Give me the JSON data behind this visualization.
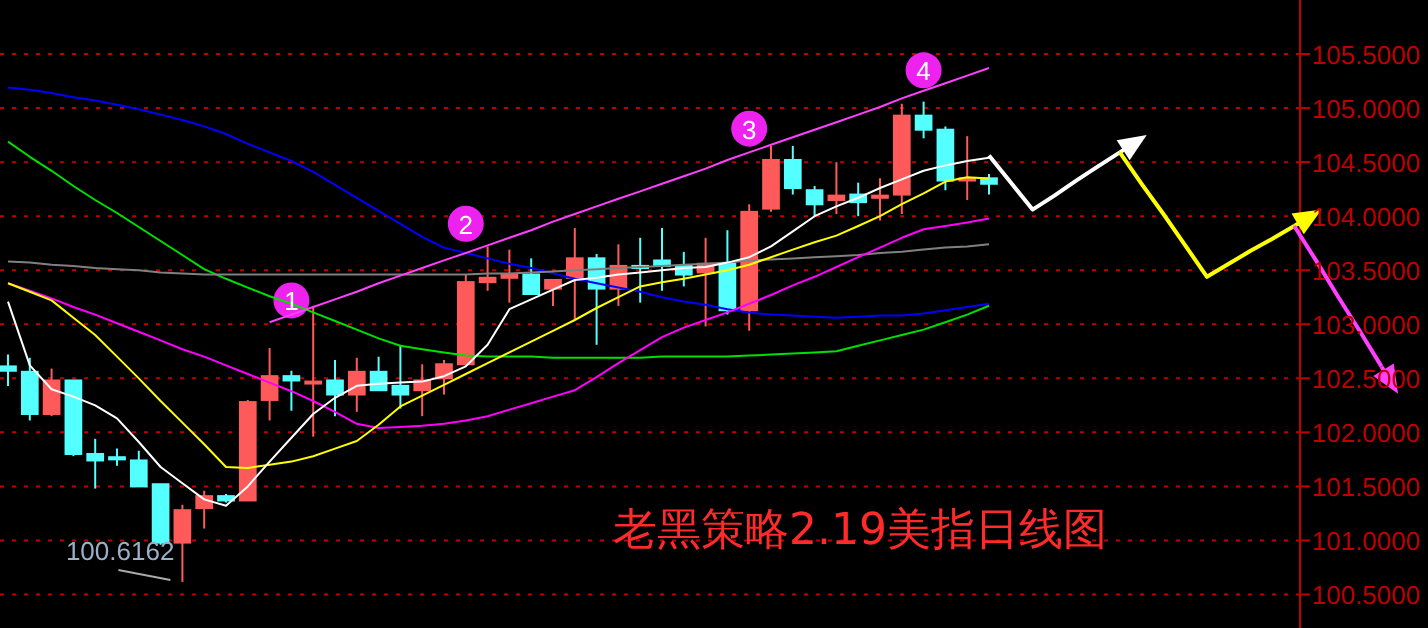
{
  "chart_data": {
    "type": "candlestick",
    "title": "老黑策略2.19美指日线图",
    "categories": [
      null,
      null,
      null,
      null,
      null,
      null,
      null,
      null,
      null,
      null,
      null,
      null,
      null,
      null,
      null,
      null,
      null,
      null,
      null,
      null,
      null,
      null,
      null,
      null,
      null,
      null,
      null,
      null,
      null,
      null,
      null,
      null,
      null,
      null,
      null,
      null,
      null,
      null,
      null,
      null,
      null,
      null,
      null,
      null,
      null,
      null,
      null,
      null,
      null,
      null,
      null,
      null,
      null,
      null,
      null,
      null,
      null,
      null,
      null,
      null,
      null,
      null,
      null,
      null
    ],
    "ohlc": [
      [
        102.61,
        102.72,
        102.43,
        102.57
      ],
      [
        102.56,
        102.69,
        102.11,
        102.17
      ],
      [
        102.17,
        102.59,
        102.15,
        102.48
      ],
      [
        102.48,
        102.48,
        101.78,
        101.8
      ],
      [
        101.8,
        101.94,
        101.48,
        101.74
      ],
      [
        101.77,
        101.85,
        101.69,
        101.75
      ],
      [
        101.74,
        101.83,
        101.5,
        101.5
      ],
      [
        101.52,
        101.52,
        100.96,
        100.98
      ],
      [
        100.98,
        101.33,
        100.6162,
        101.28
      ],
      [
        101.3,
        101.46,
        101.11,
        101.41
      ],
      [
        101.41,
        101.43,
        101.35,
        101.37
      ],
      [
        101.37,
        102.3,
        101.37,
        102.28
      ],
      [
        102.3,
        102.78,
        102.11,
        102.52
      ],
      [
        102.52,
        102.57,
        102.2,
        102.48
      ],
      [
        102.46,
        103.17,
        101.96,
        102.47
      ],
      [
        102.48,
        102.67,
        102.15,
        102.35
      ],
      [
        102.35,
        102.69,
        102.19,
        102.56
      ],
      [
        102.56,
        102.7,
        102.39,
        102.39
      ],
      [
        102.43,
        102.81,
        102.22,
        102.35
      ],
      [
        102.39,
        102.63,
        102.15,
        102.48
      ],
      [
        102.5,
        102.67,
        102.35,
        102.63
      ],
      [
        102.63,
        103.46,
        102.61,
        103.39
      ],
      [
        103.39,
        103.72,
        103.31,
        103.43
      ],
      [
        103.43,
        103.69,
        103.2,
        103.46
      ],
      [
        103.46,
        103.61,
        103.28,
        103.28
      ],
      [
        103.33,
        103.41,
        103.17,
        103.41
      ],
      [
        103.43,
        103.89,
        103.04,
        103.61
      ],
      [
        103.61,
        103.65,
        102.81,
        103.33
      ],
      [
        103.33,
        103.74,
        103.17,
        103.54
      ],
      [
        103.54,
        103.8,
        103.2,
        103.52
      ],
      [
        103.59,
        103.89,
        103.31,
        103.54
      ],
      [
        103.54,
        103.67,
        103.35,
        103.46
      ],
      [
        103.48,
        103.8,
        102.98,
        103.56
      ],
      [
        103.56,
        103.87,
        103.09,
        103.13
      ],
      [
        103.13,
        104.11,
        102.94,
        104.04
      ],
      [
        104.07,
        104.65,
        104.04,
        104.52
      ],
      [
        104.52,
        104.65,
        104.2,
        104.26
      ],
      [
        104.24,
        104.28,
        104.0,
        104.11
      ],
      [
        104.15,
        104.5,
        104.02,
        104.19
      ],
      [
        104.2,
        104.31,
        104.0,
        104.13
      ],
      [
        104.17,
        104.35,
        103.96,
        104.19
      ],
      [
        104.2,
        105.04,
        104.02,
        104.93
      ],
      [
        104.93,
        105.06,
        104.72,
        104.8
      ],
      [
        104.8,
        104.83,
        104.24,
        104.33
      ],
      [
        104.33,
        104.74,
        104.15,
        104.35
      ],
      [
        104.35,
        104.39,
        104.2,
        104.3
      ],
      null,
      null,
      null,
      null,
      null,
      null,
      null,
      null,
      null,
      null,
      null,
      null,
      null,
      null,
      null,
      null,
      null,
      null
    ],
    "colors": [
      "#54ffff",
      "#54ffff",
      "#ff5a5a",
      "#54ffff",
      "#54ffff",
      "#54ffff",
      "#54ffff",
      "#54ffff",
      "#ff5a5a",
      "#ff5a5a",
      "#54ffff",
      "#ff5a5a",
      "#ff5a5a",
      "#54ffff",
      "#ff5a5a",
      "#54ffff",
      "#ff5a5a",
      "#54ffff",
      "#54ffff",
      "#ff5a5a",
      "#ff5a5a",
      "#ff5a5a",
      "#ff5a5a",
      "#ff5a5a",
      "#54ffff",
      "#ff5a5a",
      "#ff5a5a",
      "#54ffff",
      "#ff5a5a",
      "#54ffff",
      "#54ffff",
      "#54ffff",
      "#ff5a5a",
      "#54ffff",
      "#ff5a5a",
      "#ff5a5a",
      "#54ffff",
      "#54ffff",
      "#ff5a5a",
      "#54ffff",
      "#ff5a5a",
      "#ff5a5a",
      "#54ffff",
      "#54ffff",
      "#ff5a5a",
      "#54ffff",
      null,
      null,
      null,
      null,
      null,
      null,
      null,
      null,
      null,
      null,
      null,
      null,
      null,
      null,
      null,
      null,
      null,
      null
    ],
    "series": [
      {
        "type": "line",
        "color": "#0000ff",
        "values": [
          105.19,
          105.17,
          105.14,
          105.1,
          105.07,
          105.03,
          104.99,
          104.94,
          104.89,
          104.83,
          104.76,
          104.67,
          104.59,
          104.51,
          104.41,
          104.29,
          104.17,
          104.05,
          103.93,
          103.81,
          103.71,
          103.66,
          103.61,
          103.56,
          103.52,
          103.47,
          103.42,
          103.38,
          103.34,
          103.3,
          103.25,
          103.21,
          103.18,
          103.14,
          103.11,
          103.09,
          103.08,
          103.07,
          103.06,
          103.07,
          103.08,
          103.08,
          103.1,
          103.13,
          103.16,
          103.19,
          null,
          null,
          null,
          null,
          null,
          null,
          null,
          null,
          null,
          null,
          null,
          null,
          null,
          null,
          null,
          null,
          null,
          null
        ]
      },
      {
        "type": "line",
        "color": "#00e000",
        "values": [
          104.69,
          104.55,
          104.42,
          104.28,
          104.15,
          104.03,
          103.9,
          103.77,
          103.64,
          103.51,
          103.42,
          103.34,
          103.26,
          103.19,
          103.11,
          103.03,
          102.95,
          102.87,
          102.8,
          102.77,
          102.74,
          102.71,
          102.7,
          102.7,
          102.7,
          102.69,
          102.69,
          102.69,
          102.69,
          102.69,
          102.7,
          102.7,
          102.7,
          102.7,
          102.71,
          102.72,
          102.73,
          102.74,
          102.75,
          102.8,
          102.85,
          102.9,
          102.95,
          103.02,
          103.09,
          103.17,
          null,
          null,
          null,
          null,
          null,
          null,
          null,
          null,
          null,
          null,
          null,
          null,
          null,
          null,
          null,
          null,
          null,
          null
        ]
      },
      {
        "type": "line",
        "color": "#808080",
        "values": [
          103.58,
          103.57,
          103.55,
          103.54,
          103.52,
          103.51,
          103.5,
          103.48,
          103.47,
          103.46,
          103.46,
          103.46,
          103.46,
          103.46,
          103.46,
          103.46,
          103.46,
          103.46,
          103.46,
          103.46,
          103.46,
          103.46,
          103.47,
          103.47,
          103.48,
          103.49,
          103.5,
          103.51,
          103.52,
          103.53,
          103.54,
          103.55,
          103.56,
          103.57,
          103.59,
          103.6,
          103.61,
          103.62,
          103.63,
          103.64,
          103.66,
          103.67,
          103.69,
          103.71,
          103.72,
          103.74,
          null,
          null,
          null,
          null,
          null,
          null,
          null,
          null,
          null,
          null,
          null,
          null,
          null,
          null,
          null,
          null,
          null,
          null
        ]
      },
      {
        "type": "line",
        "color": "#ff00ff",
        "values": [
          103.38,
          103.31,
          103.24,
          103.16,
          103.09,
          103.01,
          102.93,
          102.85,
          102.77,
          102.7,
          102.62,
          102.54,
          102.46,
          102.38,
          102.29,
          102.19,
          102.08,
          102.04,
          102.05,
          102.06,
          102.08,
          102.11,
          102.15,
          102.21,
          102.27,
          102.33,
          102.39,
          102.51,
          102.64,
          102.76,
          102.88,
          102.97,
          103.04,
          103.11,
          103.19,
          103.27,
          103.36,
          103.44,
          103.53,
          103.62,
          103.71,
          103.8,
          103.88,
          103.91,
          103.94,
          103.98,
          null,
          null,
          null,
          null,
          null,
          null,
          null,
          null,
          null,
          null,
          null,
          null,
          null,
          null,
          null,
          null,
          null,
          null
        ]
      },
      {
        "type": "line",
        "color": "#ffff00",
        "values": [
          103.38,
          103.3,
          103.22,
          103.06,
          102.9,
          102.7,
          102.5,
          102.29,
          102.09,
          101.89,
          101.68,
          101.67,
          101.7,
          101.73,
          101.78,
          101.85,
          101.92,
          102.07,
          102.24,
          102.34,
          102.44,
          102.54,
          102.64,
          102.74,
          102.84,
          102.94,
          103.04,
          103.15,
          103.25,
          103.35,
          103.39,
          103.42,
          103.46,
          103.5,
          103.55,
          103.62,
          103.69,
          103.76,
          103.82,
          103.91,
          104.0,
          104.11,
          104.21,
          104.32,
          104.36,
          104.35,
          null,
          null,
          null,
          null,
          null,
          null,
          null,
          null,
          null,
          null,
          null,
          null,
          null,
          null,
          null,
          null,
          null,
          null
        ]
      },
      {
        "type": "line",
        "color": "#ffffff",
        "values": [
          103.21,
          102.62,
          102.4,
          102.33,
          102.25,
          102.13,
          101.91,
          101.68,
          101.53,
          101.38,
          101.32,
          101.5,
          101.73,
          101.95,
          102.17,
          102.32,
          102.43,
          102.45,
          102.46,
          102.47,
          102.52,
          102.61,
          102.81,
          103.14,
          103.23,
          103.32,
          103.41,
          103.43,
          103.46,
          103.48,
          103.5,
          103.52,
          103.53,
          103.57,
          103.62,
          103.72,
          103.86,
          104.0,
          104.09,
          104.17,
          104.26,
          104.34,
          104.42,
          104.47,
          104.51,
          104.54,
          null,
          null,
          null,
          null,
          null,
          null,
          null,
          null,
          null,
          null,
          null,
          null,
          null,
          null,
          null,
          null,
          null,
          null
        ]
      },
      {
        "type": "line",
        "color": "#ff40ff",
        "values": [
          null,
          null,
          null,
          null,
          null,
          null,
          null,
          null,
          null,
          null,
          null,
          null,
          103.02,
          103.09,
          103.16,
          103.23,
          103.3,
          103.38,
          103.45,
          103.52,
          103.59,
          103.66,
          103.73,
          103.8,
          103.87,
          103.95,
          104.02,
          104.09,
          104.16,
          104.23,
          104.3,
          104.37,
          104.44,
          104.52,
          104.59,
          104.66,
          104.73,
          104.8,
          104.87,
          104.94,
          105.01,
          105.09,
          105.16,
          105.23,
          105.3,
          105.37,
          null,
          null,
          null,
          null,
          null,
          null,
          null,
          null,
          null,
          null,
          null,
          null,
          null,
          null,
          null,
          null,
          null,
          null
        ]
      },
      {
        "type": "line",
        "color": "#ffffff",
        "values": [
          null,
          null,
          null,
          null,
          null,
          null,
          null,
          null,
          null,
          null,
          null,
          null,
          null,
          null,
          null,
          null,
          null,
          null,
          null,
          null,
          null,
          null,
          null,
          null,
          null,
          null,
          null,
          null,
          null,
          null,
          null,
          null,
          null,
          null,
          null,
          null,
          null,
          null,
          null,
          null,
          null,
          null,
          null,
          null,
          null,
          104.56,
          104.31,
          104.06,
          104.19,
          104.33,
          104.46,
          104.59,
          null,
          null,
          null,
          null,
          null,
          null,
          null,
          null,
          null,
          null,
          null,
          null
        ]
      },
      {
        "type": "line",
        "color": "#ffff00",
        "values": [
          null,
          null,
          null,
          null,
          null,
          null,
          null,
          null,
          null,
          null,
          null,
          null,
          null,
          null,
          null,
          null,
          null,
          null,
          null,
          null,
          null,
          null,
          null,
          null,
          null,
          null,
          null,
          null,
          null,
          null,
          null,
          null,
          null,
          null,
          null,
          null,
          null,
          null,
          null,
          null,
          null,
          null,
          null,
          null,
          null,
          null,
          null,
          null,
          null,
          null,
          null,
          104.59,
          104.3,
          104.02,
          103.73,
          103.44,
          103.56,
          103.68,
          103.79,
          103.91,
          null,
          null,
          null,
          null
        ]
      },
      {
        "type": "line",
        "color": "#ff40ff",
        "values": [
          null,
          null,
          null,
          null,
          null,
          null,
          null,
          null,
          null,
          null,
          null,
          null,
          null,
          null,
          null,
          null,
          null,
          null,
          null,
          null,
          null,
          null,
          null,
          null,
          null,
          null,
          null,
          null,
          null,
          null,
          null,
          null,
          null,
          null,
          null,
          null,
          null,
          null,
          null,
          null,
          null,
          null,
          null,
          null,
          null,
          null,
          null,
          null,
          null,
          null,
          null,
          null,
          null,
          null,
          null,
          null,
          null,
          null,
          null,
          103.91,
          103.59,
          103.26,
          102.94,
          102.61
        ]
      },
      {
        "type": "scatter",
        "color": "#ee22ee",
        "marker": "circle",
        "values": [
          null,
          null,
          null,
          null,
          null,
          null,
          null,
          null,
          null,
          null,
          null,
          null,
          null,
          103.22,
          null,
          null,
          null,
          null,
          null,
          null,
          null,
          103.93,
          null,
          null,
          null,
          null,
          null,
          null,
          null,
          null,
          null,
          null,
          null,
          null,
          104.81,
          null,
          null,
          null,
          null,
          null,
          null,
          null,
          105.35,
          null,
          null,
          null,
          null,
          null,
          null,
          null,
          null,
          null,
          null,
          null,
          null,
          null,
          null,
          null,
          null,
          null,
          null,
          null,
          null,
          null
        ]
      }
    ],
    "annotations": [
      "1",
      "2",
      "3",
      "4",
      "100.6162"
    ],
    "ylim": [
      100.19,
      106.0
    ],
    "yticks": [
      {
        "value": 100.5,
        "label": "100.5000"
      },
      {
        "value": 101.0,
        "label": "101.0000"
      },
      {
        "value": 101.5,
        "label": "101.5000"
      },
      {
        "value": 102.0,
        "label": "102.0000"
      },
      {
        "value": 102.5,
        "label": "102.5000"
      },
      {
        "value": 103.0,
        "label": "103.0000"
      },
      {
        "value": 103.5,
        "label": "103.5000"
      },
      {
        "value": 104.0,
        "label": "104.0000"
      },
      {
        "value": 104.5,
        "label": "104.5000"
      },
      {
        "value": 105.0,
        "label": "105.0000"
      },
      {
        "value": 105.5,
        "label": "105.5000"
      }
    ],
    "tick_labels": "y",
    "grid": "y"
  }
}
